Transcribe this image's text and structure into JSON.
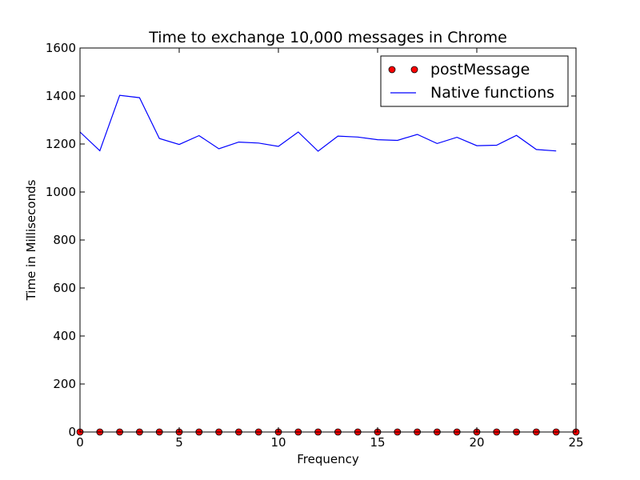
{
  "chart_data": {
    "type": "line",
    "title": "Time to exchange 10,000 messages in Chrome",
    "xlabel": "Frequency",
    "ylabel": "Time in Milliseconds",
    "xlim": [
      0,
      25
    ],
    "ylim": [
      0,
      1600
    ],
    "xticks": [
      0,
      5,
      10,
      15,
      20,
      25
    ],
    "yticks": [
      0,
      200,
      400,
      600,
      800,
      1000,
      1200,
      1400,
      1600
    ],
    "grid": false,
    "legend_position": "top-right",
    "series": [
      {
        "name": "postMessage",
        "style": "markers",
        "color": "#ff0000",
        "x": [
          0,
          1,
          2,
          3,
          4,
          5,
          6,
          7,
          8,
          9,
          10,
          11,
          12,
          13,
          14,
          15,
          16,
          17,
          18,
          19,
          20,
          21,
          22,
          23,
          24,
          25
        ],
        "values": [
          0,
          0,
          0,
          0,
          0,
          0,
          0,
          0,
          0,
          0,
          0,
          0,
          0,
          0,
          0,
          0,
          0,
          0,
          0,
          0,
          0,
          0,
          0,
          0,
          0,
          0
        ]
      },
      {
        "name": "Native functions",
        "style": "line",
        "color": "#0000ff",
        "x": [
          0,
          1,
          2,
          3,
          4,
          5,
          6,
          7,
          8,
          9,
          10,
          11,
          12,
          13,
          14,
          15,
          16,
          17,
          18,
          19,
          20,
          21,
          22,
          23,
          24
        ],
        "values": [
          1250,
          1172,
          1403,
          1393,
          1223,
          1198,
          1235,
          1180,
          1208,
          1204,
          1190,
          1250,
          1170,
          1233,
          1229,
          1218,
          1215,
          1240,
          1202,
          1228,
          1193,
          1195,
          1236,
          1177,
          1171
        ]
      }
    ]
  }
}
